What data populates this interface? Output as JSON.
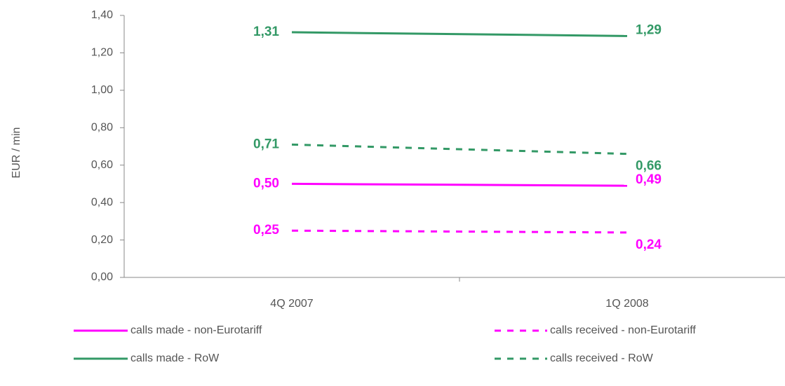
{
  "chart_data": {
    "type": "line",
    "y_label": "EUR / min",
    "categories": [
      "4Q 2007",
      "1Q 2008"
    ],
    "series": [
      {
        "name": "calls made - non-Eurotariff",
        "color": "#ff00ff",
        "dashed": false,
        "values": [
          0.5,
          0.49
        ],
        "value_labels": [
          "0,50",
          "0,49"
        ]
      },
      {
        "name": "calls received - non-Eurotariff",
        "color": "#ff00ff",
        "dashed": true,
        "values": [
          0.25,
          0.24
        ],
        "value_labels": [
          "0,25",
          "0,24"
        ]
      },
      {
        "name": "calls made - RoW",
        "color": "#339966",
        "dashed": false,
        "values": [
          1.31,
          1.29
        ],
        "value_labels": [
          "1,31",
          "1,29"
        ]
      },
      {
        "name": "calls received - RoW",
        "color": "#339966",
        "dashed": true,
        "values": [
          0.71,
          0.66
        ],
        "value_labels": [
          "0,71",
          "0,66"
        ]
      }
    ],
    "ylim": [
      0,
      1.4
    ],
    "yticks": [
      {
        "value": 0,
        "label": "0,00"
      },
      {
        "value": 0.2,
        "label": "0,20"
      },
      {
        "value": 0.4,
        "label": "0,40"
      },
      {
        "value": 0.6,
        "label": "0,60"
      },
      {
        "value": 0.8,
        "label": "0,80"
      },
      {
        "value": 1.0,
        "label": "1,00"
      },
      {
        "value": 1.2,
        "label": "1,20"
      },
      {
        "value": 1.4,
        "label": "1,40"
      }
    ],
    "grid": false
  }
}
